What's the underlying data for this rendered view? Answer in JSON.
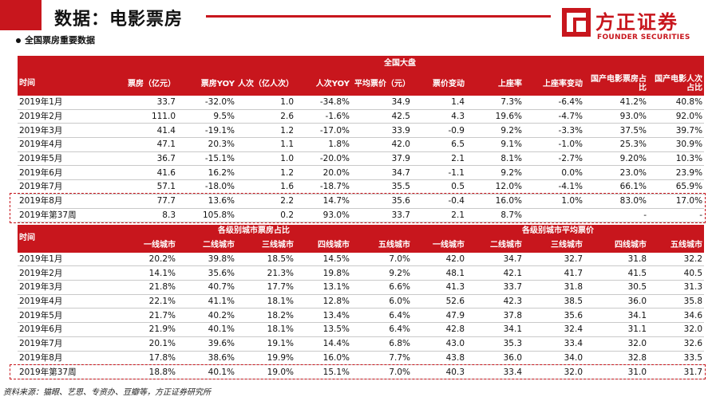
{
  "header": {
    "title": "数据：电影票房",
    "subtitle": "全国票房重要数据",
    "logo_cn": "方正证券",
    "logo_en": "FOUNDER SECURITIES",
    "accent": "#c8161d"
  },
  "table1": {
    "group_header": "全国大盘",
    "label_header": "时间",
    "columns": [
      "票房（亿元）",
      "票房YOY",
      "人次（亿人次）",
      "人次YOY",
      "平均票价（元）",
      "票价变动",
      "上座率",
      "上座率变动",
      "国产电影票房占比",
      "国产电影人次占比"
    ],
    "rows": [
      {
        "label": "2019年1月",
        "cells": [
          "33.7",
          "-32.0%",
          "1.0",
          "-34.8%",
          "34.9",
          "1.4",
          "7.3%",
          "-6.4%",
          "41.2%",
          "40.8%"
        ]
      },
      {
        "label": "2019年2月",
        "cells": [
          "111.0",
          "9.5%",
          "2.6",
          "-1.6%",
          "42.5",
          "4.3",
          "19.6%",
          "-4.7%",
          "93.0%",
          "92.0%"
        ]
      },
      {
        "label": "2019年3月",
        "cells": [
          "41.4",
          "-19.1%",
          "1.2",
          "-17.0%",
          "33.9",
          "-0.9",
          "9.2%",
          "-3.3%",
          "37.5%",
          "39.7%"
        ]
      },
      {
        "label": "2019年4月",
        "cells": [
          "47.1",
          "20.3%",
          "1.1",
          "1.8%",
          "42.0",
          "6.5",
          "9.1%",
          "-1.0%",
          "25.3%",
          "30.9%"
        ]
      },
      {
        "label": "2019年5月",
        "cells": [
          "36.7",
          "-15.1%",
          "1.0",
          "-20.0%",
          "37.9",
          "2.1",
          "8.1%",
          "-2.7%",
          "9.20%",
          "10.3%"
        ]
      },
      {
        "label": "2019年6月",
        "cells": [
          "41.6",
          "16.2%",
          "1.2",
          "20.0%",
          "34.7",
          "-1.1",
          "9.2%",
          "0.0%",
          "23.0%",
          "23.9%"
        ]
      },
      {
        "label": "2019年7月",
        "cells": [
          "57.1",
          "-18.0%",
          "1.6",
          "-18.7%",
          "35.5",
          "0.5",
          "12.0%",
          "-4.1%",
          "66.1%",
          "65.9%"
        ]
      },
      {
        "label": "2019年8月",
        "cells": [
          "77.7",
          "13.6%",
          "2.2",
          "14.7%",
          "35.6",
          "-0.4",
          "16.0%",
          "1.0%",
          "83.0%",
          "17.0%"
        ]
      },
      {
        "label": "2019年第37周",
        "cells": [
          "8.3",
          "105.8%",
          "0.2",
          "93.0%",
          "33.7",
          "2.1",
          "8.7%",
          "",
          "-",
          "-"
        ]
      }
    ]
  },
  "table2": {
    "label_header": "时间",
    "group_left": "各级别城市票房占比",
    "group_right": "各级别城市平均票价",
    "columns": [
      "一线城市",
      "二线城市",
      "三线城市",
      "四线城市",
      "五线城市",
      "一线城市",
      "二线城市",
      "三线城市",
      "四线城市",
      "五线城市"
    ],
    "rows": [
      {
        "label": "2019年1月",
        "cells": [
          "20.2%",
          "39.8%",
          "18.5%",
          "14.5%",
          "7.0%",
          "42.0",
          "34.7",
          "32.7",
          "31.8",
          "32.2"
        ]
      },
      {
        "label": "2019年2月",
        "cells": [
          "14.1%",
          "35.6%",
          "21.3%",
          "19.8%",
          "9.2%",
          "48.1",
          "42.1",
          "41.7",
          "41.5",
          "40.5"
        ]
      },
      {
        "label": "2019年3月",
        "cells": [
          "21.8%",
          "40.7%",
          "17.7%",
          "13.1%",
          "6.6%",
          "41.3",
          "33.7",
          "31.8",
          "30.5",
          "31.3"
        ]
      },
      {
        "label": "2019年4月",
        "cells": [
          "22.1%",
          "41.1%",
          "18.1%",
          "12.8%",
          "6.0%",
          "52.6",
          "42.3",
          "38.5",
          "36.0",
          "35.8"
        ]
      },
      {
        "label": "2019年5月",
        "cells": [
          "21.7%",
          "40.2%",
          "18.2%",
          "13.4%",
          "6.4%",
          "47.9",
          "37.8",
          "35.6",
          "34.1",
          "34.6"
        ]
      },
      {
        "label": "2019年6月",
        "cells": [
          "21.9%",
          "40.1%",
          "18.1%",
          "13.5%",
          "6.4%",
          "42.8",
          "34.1",
          "32.4",
          "31.1",
          "32.0"
        ]
      },
      {
        "label": "2019年7月",
        "cells": [
          "20.1%",
          "39.6%",
          "19.1%",
          "14.4%",
          "6.8%",
          "43.0",
          "35.3",
          "33.4",
          "32.0",
          "32.6"
        ]
      },
      {
        "label": "2019年8月",
        "cells": [
          "17.8%",
          "38.6%",
          "19.9%",
          "16.0%",
          "7.7%",
          "43.8",
          "36.0",
          "34.0",
          "32.8",
          "33.5"
        ]
      },
      {
        "label": "2019年第37周",
        "cells": [
          "18.8%",
          "40.1%",
          "19.0%",
          "15.1%",
          "7.0%",
          "40.3",
          "33.4",
          "32.0",
          "31.0",
          "31.7"
        ]
      }
    ]
  },
  "footer": {
    "source": "资料来源：猫眼、艺恩、专资办、豆瓣等，方正证券研究所"
  }
}
